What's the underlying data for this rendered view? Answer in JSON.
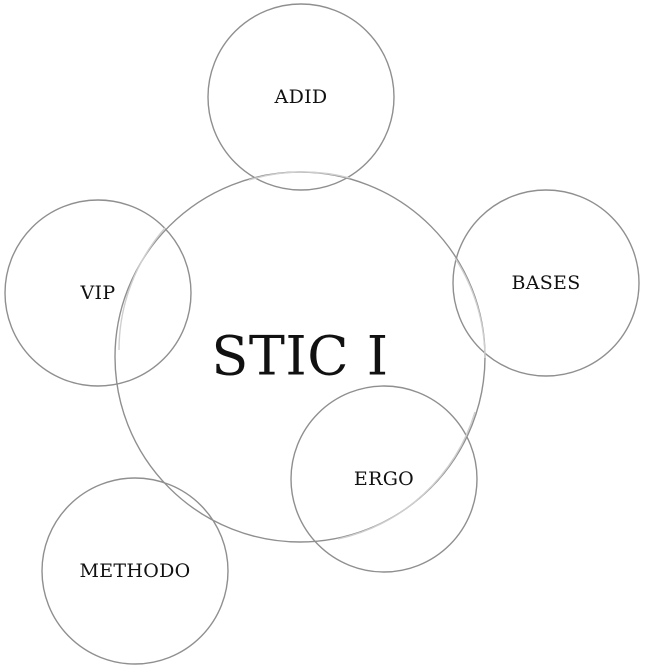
{
  "center": {
    "label": "STIC I"
  },
  "satellites": [
    {
      "label": "ADID"
    },
    {
      "label": "BASES"
    },
    {
      "label": "ERGO"
    },
    {
      "label": "METHODO"
    },
    {
      "label": "VIP"
    }
  ]
}
